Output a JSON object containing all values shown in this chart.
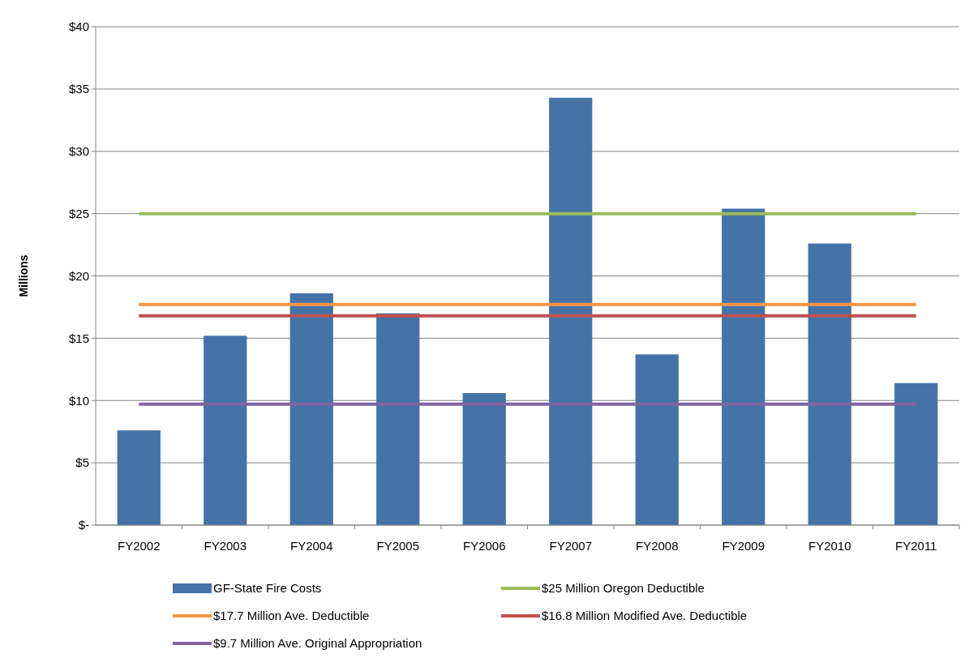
{
  "chart_data": {
    "type": "bar",
    "ylabel": "Millions",
    "categories": [
      "FY2002",
      "FY2003",
      "FY2004",
      "FY2005",
      "FY2006",
      "FY2007",
      "FY2008",
      "FY2009",
      "FY2010",
      "FY2011"
    ],
    "series": [
      {
        "name": "GF-State  Fire Costs",
        "color": "#4572a7",
        "values": [
          7.6,
          15.2,
          18.6,
          17.0,
          10.6,
          34.3,
          13.7,
          25.4,
          22.6,
          11.4
        ]
      },
      {
        "name": "$25 Million Oregon Deductible",
        "type": "line",
        "color": "#9bbb59",
        "values": [
          25,
          25,
          25,
          25,
          25,
          25,
          25,
          25,
          25,
          25
        ]
      },
      {
        "name": "$17.7 Million Ave. Deductible",
        "type": "line",
        "color": "#f79646",
        "values": [
          17.7,
          17.7,
          17.7,
          17.7,
          17.7,
          17.7,
          17.7,
          17.7,
          17.7,
          17.7
        ]
      },
      {
        "name": "$16.8 Million Modified Ave. Deductible",
        "type": "line",
        "color": "#c0504d",
        "values": [
          16.8,
          16.8,
          16.8,
          16.8,
          16.8,
          16.8,
          16.8,
          16.8,
          16.8,
          16.8
        ]
      },
      {
        "name": "$9.7 Million Ave. Original Appropriation",
        "type": "line",
        "color": "#8064a2",
        "values": [
          9.7,
          9.7,
          9.7,
          9.7,
          9.7,
          9.7,
          9.7,
          9.7,
          9.7,
          9.7
        ]
      }
    ],
    "ylim": [
      0,
      40
    ],
    "yticks": [
      {
        "value": 0,
        "label": "$-"
      },
      {
        "value": 5,
        "label": "$5"
      },
      {
        "value": 10,
        "label": "$10"
      },
      {
        "value": 15,
        "label": "$15"
      },
      {
        "value": 20,
        "label": "$20"
      },
      {
        "value": 25,
        "label": "$25"
      },
      {
        "value": 30,
        "label": "$30"
      },
      {
        "value": 35,
        "label": "$35"
      },
      {
        "value": 40,
        "label": "$40"
      }
    ],
    "grid": "y",
    "legend": "bottom",
    "marker": "none",
    "line_style": "solid"
  }
}
